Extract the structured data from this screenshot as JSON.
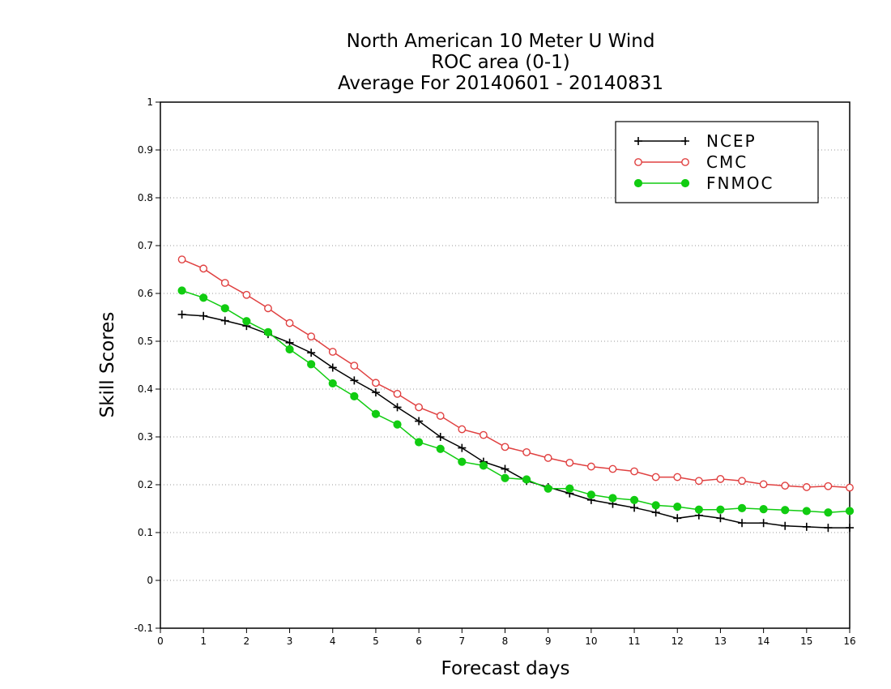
{
  "chart_data": {
    "type": "line",
    "title": [
      "North American 10 Meter U Wind",
      "ROC area (0-1)",
      "Average For 20140601 - 20140831"
    ],
    "xlabel": "Forecast days",
    "ylabel": "Skill Scores",
    "xlim": [
      0,
      16
    ],
    "ylim": [
      -0.1,
      1
    ],
    "x_ticks": [
      "0",
      "1",
      "2",
      "3",
      "4",
      "5",
      "6",
      "7",
      "8",
      "9",
      "10",
      "11",
      "12",
      "13",
      "14",
      "15",
      "16"
    ],
    "y_ticks": [
      "-0.1",
      "0",
      "0.1",
      "0.2",
      "0.3",
      "0.4",
      "0.5",
      "0.6",
      "0.7",
      "0.8",
      "0.9",
      "1"
    ],
    "grid": "horizontal dotted",
    "legend_position": "top-right",
    "x": [
      0.5,
      1,
      1.5,
      2,
      2.5,
      3,
      3.5,
      4,
      4.5,
      5,
      5.5,
      6,
      6.5,
      7,
      7.5,
      8,
      8.5,
      9,
      9.5,
      10,
      10.5,
      11,
      11.5,
      12,
      12.5,
      13,
      13.5,
      14,
      14.5,
      15,
      15.5,
      16
    ],
    "series": [
      {
        "name": "NCEP",
        "color": "#000000",
        "marker": "plus",
        "values": [
          0.556,
          0.553,
          0.543,
          0.532,
          0.515,
          0.497,
          0.476,
          0.445,
          0.418,
          0.393,
          0.362,
          0.333,
          0.3,
          0.277,
          0.248,
          0.233,
          0.208,
          0.195,
          0.182,
          0.168,
          0.16,
          0.152,
          0.142,
          0.13,
          0.136,
          0.13,
          0.12,
          0.12,
          0.114,
          0.112,
          0.11,
          0.11
        ]
      },
      {
        "name": "CMC",
        "color": "#e04040",
        "marker": "open-circle",
        "values": [
          0.671,
          0.652,
          0.622,
          0.597,
          0.569,
          0.538,
          0.51,
          0.478,
          0.449,
          0.413,
          0.39,
          0.362,
          0.344,
          0.316,
          0.304,
          0.279,
          0.268,
          0.256,
          0.246,
          0.238,
          0.233,
          0.228,
          0.216,
          0.216,
          0.208,
          0.212,
          0.208,
          0.201,
          0.198,
          0.195,
          0.197,
          0.194
        ]
      },
      {
        "name": "FNMOC",
        "color": "#11cc11",
        "marker": "filled-circle",
        "values": [
          0.606,
          0.591,
          0.569,
          0.542,
          0.519,
          0.483,
          0.452,
          0.412,
          0.385,
          0.348,
          0.326,
          0.289,
          0.275,
          0.248,
          0.24,
          0.214,
          0.211,
          0.192,
          0.192,
          0.179,
          0.172,
          0.168,
          0.157,
          0.154,
          0.148,
          0.148,
          0.151,
          0.149,
          0.147,
          0.145,
          0.142,
          0.145
        ]
      }
    ]
  }
}
